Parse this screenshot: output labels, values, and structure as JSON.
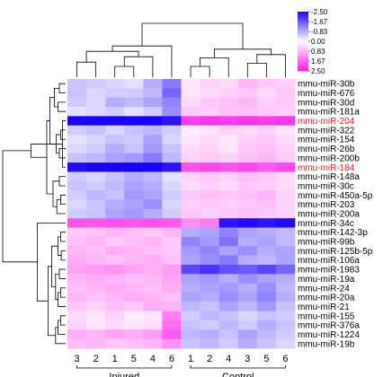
{
  "chart_data": {
    "type": "heatmap",
    "columns": [
      "3",
      "2",
      "1",
      "5",
      "4",
      "6",
      "1",
      "2",
      "4",
      "3",
      "5",
      "6"
    ],
    "groups": [
      {
        "label": "Injured",
        "columns": [
          "3",
          "2",
          "1",
          "5",
          "4",
          "6"
        ]
      },
      {
        "label": "Control",
        "columns": [
          "1",
          "2",
          "4",
          "3",
          "5",
          "6"
        ]
      }
    ],
    "rows": [
      "mmu-miR-30b",
      "mmu-miR-676",
      "mmu-miR-30d",
      "mmu-miR-181a",
      "mmu-miR-204",
      "mmu-miR-322",
      "mmu-miR-154",
      "mmu-miR-26b",
      "mmu-miR-200b",
      "mmu-miR-184",
      "mmu-miR-148a",
      "mmu-miR-30c",
      "mmu-miR-450a-5p",
      "mmu-miR-203",
      "mmu-miR-200a",
      "mmu-miR-34c",
      "mmu-miR-142-3p",
      "mmu-miR-99b",
      "mmu-miR-125b-5p",
      "mmu-miR-106a",
      "mmu-miR-1983",
      "mmu-miR-19a",
      "mmu-miR-24",
      "mmu-miR-20a",
      "mmu-miR-21",
      "mmu-miR-155",
      "mmu-miR-376a",
      "mmu-miR-1224",
      "mmu-miR-19b"
    ],
    "highlighted_rows": [
      "mmu-miR-204",
      "mmu-miR-184"
    ],
    "highlight_color": "#d42020",
    "values": [
      [
        -0.6,
        -0.5,
        -0.4,
        -0.3,
        -0.8,
        -1.3,
        0.3,
        0.5,
        0.4,
        0.8,
        0.6,
        0.5
      ],
      [
        -0.6,
        -0.4,
        -0.5,
        -0.5,
        -0.7,
        -1.5,
        0.3,
        0.4,
        0.5,
        0.6,
        0.4,
        0.6
      ],
      [
        -0.5,
        -0.4,
        -0.8,
        -0.7,
        -0.9,
        -1.2,
        0.4,
        0.6,
        0.7,
        0.8,
        0.5,
        0.6
      ],
      [
        -0.3,
        -0.4,
        -0.5,
        -0.3,
        -0.5,
        -1.1,
        0.6,
        0.5,
        0.7,
        0.7,
        0.6,
        0.5
      ],
      [
        -2.5,
        -2.5,
        -2.5,
        -2.5,
        -2.5,
        -2.3,
        2.1,
        2.2,
        2.1,
        2.2,
        2.1,
        2.2
      ],
      [
        -0.5,
        -0.6,
        -0.4,
        -0.6,
        -0.7,
        -0.5,
        0.2,
        0.3,
        0.5,
        0.4,
        0.5,
        0.3
      ],
      [
        -0.3,
        -0.4,
        -0.6,
        -0.5,
        -0.9,
        -0.4,
        0.3,
        0.4,
        0.3,
        0.5,
        0.6,
        0.4
      ],
      [
        -0.4,
        -0.5,
        -0.8,
        -0.6,
        -1.0,
        -0.6,
        0.4,
        0.5,
        0.3,
        0.6,
        0.7,
        0.5
      ],
      [
        -0.6,
        -0.7,
        -0.9,
        -1.0,
        -1.3,
        -0.7,
        0.5,
        0.6,
        0.5,
        0.7,
        0.8,
        0.6
      ],
      [
        -2.4,
        -2.5,
        -2.5,
        -2.5,
        -2.5,
        -2.3,
        1.9,
        2.0,
        1.9,
        2.0,
        1.8,
        2.0
      ],
      [
        -0.5,
        -0.4,
        -0.6,
        -0.8,
        -0.7,
        -0.3,
        0.5,
        0.6,
        0.5,
        0.7,
        0.6,
        0.4
      ],
      [
        -0.6,
        -0.5,
        -0.7,
        -0.9,
        -0.8,
        -0.4,
        0.4,
        0.5,
        0.4,
        0.6,
        0.5,
        0.4
      ],
      [
        -0.5,
        -0.7,
        -0.6,
        -1.0,
        -0.9,
        -0.5,
        0.6,
        0.7,
        0.6,
        0.7,
        0.8,
        0.5
      ],
      [
        -0.4,
        -0.6,
        -0.8,
        -0.9,
        -1.1,
        -0.4,
        0.5,
        0.6,
        0.5,
        0.6,
        0.7,
        0.5
      ],
      [
        -0.5,
        -0.6,
        -0.9,
        -1.0,
        -0.8,
        -0.5,
        0.6,
        0.5,
        0.6,
        0.7,
        0.6,
        0.5
      ],
      [
        1.9,
        1.8,
        1.9,
        1.8,
        1.9,
        1.8,
        1.2,
        1.4,
        -2.3,
        -2.4,
        -2.3,
        -2.4
      ],
      [
        0.6,
        0.7,
        0.8,
        0.7,
        0.6,
        0.8,
        -0.8,
        -0.9,
        -1.2,
        -0.9,
        -0.8,
        -0.7
      ],
      [
        0.7,
        0.8,
        0.6,
        0.7,
        0.8,
        0.6,
        -1.2,
        -1.0,
        -1.4,
        -0.8,
        -0.9,
        -0.7
      ],
      [
        0.8,
        0.7,
        0.9,
        0.8,
        0.7,
        0.6,
        -1.0,
        -1.2,
        -0.9,
        -1.1,
        -0.8,
        -0.9
      ],
      [
        0.9,
        0.8,
        0.7,
        0.8,
        0.9,
        0.7,
        -0.9,
        -1.1,
        -1.3,
        -0.8,
        -0.7,
        -0.9
      ],
      [
        1.0,
        1.1,
        1.2,
        1.0,
        0.9,
        1.1,
        -1.8,
        -2.0,
        -1.7,
        -1.6,
        -1.8,
        -1.5
      ],
      [
        0.8,
        0.9,
        0.8,
        0.7,
        0.8,
        1.0,
        -0.9,
        -1.0,
        -0.8,
        -1.1,
        -0.9,
        -0.8
      ],
      [
        0.7,
        0.8,
        0.9,
        0.8,
        0.7,
        0.9,
        -0.8,
        -0.9,
        -1.0,
        -0.8,
        -1.1,
        -0.7
      ],
      [
        0.8,
        0.7,
        0.8,
        0.9,
        0.8,
        0.7,
        -0.9,
        -0.8,
        -1.1,
        -0.9,
        -1.2,
        -0.8
      ],
      [
        0.6,
        0.5,
        0.7,
        0.6,
        0.9,
        0.8,
        -0.7,
        -0.6,
        -0.9,
        -0.7,
        -1.0,
        -0.6
      ],
      [
        0.4,
        0.3,
        0.5,
        0.2,
        0.3,
        1.4,
        -0.5,
        -0.7,
        -0.6,
        -0.4,
        -0.6,
        -0.5
      ],
      [
        0.5,
        0.3,
        0.4,
        0.3,
        0.4,
        1.6,
        -0.6,
        -0.5,
        -0.7,
        -0.5,
        -0.8,
        -0.6
      ],
      [
        0.9,
        0.8,
        1.0,
        0.9,
        1.1,
        1.8,
        -0.7,
        -0.8,
        -0.6,
        -0.9,
        -0.7,
        -0.5
      ],
      [
        0.7,
        0.8,
        0.6,
        0.7,
        0.8,
        1.2,
        -0.6,
        -0.7,
        -0.5,
        -0.8,
        -0.6,
        -0.4
      ]
    ],
    "scale": {
      "min": -2.5,
      "max": 2.5,
      "low_color": "#1a00ff",
      "mid_color": "#ffffff",
      "high_color": "#ff1ae6",
      "legend_ticks": [
        "-2.50",
        "-1.67",
        "-0.83",
        "0.00",
        "0.83",
        "1.67",
        "2.50"
      ]
    }
  }
}
